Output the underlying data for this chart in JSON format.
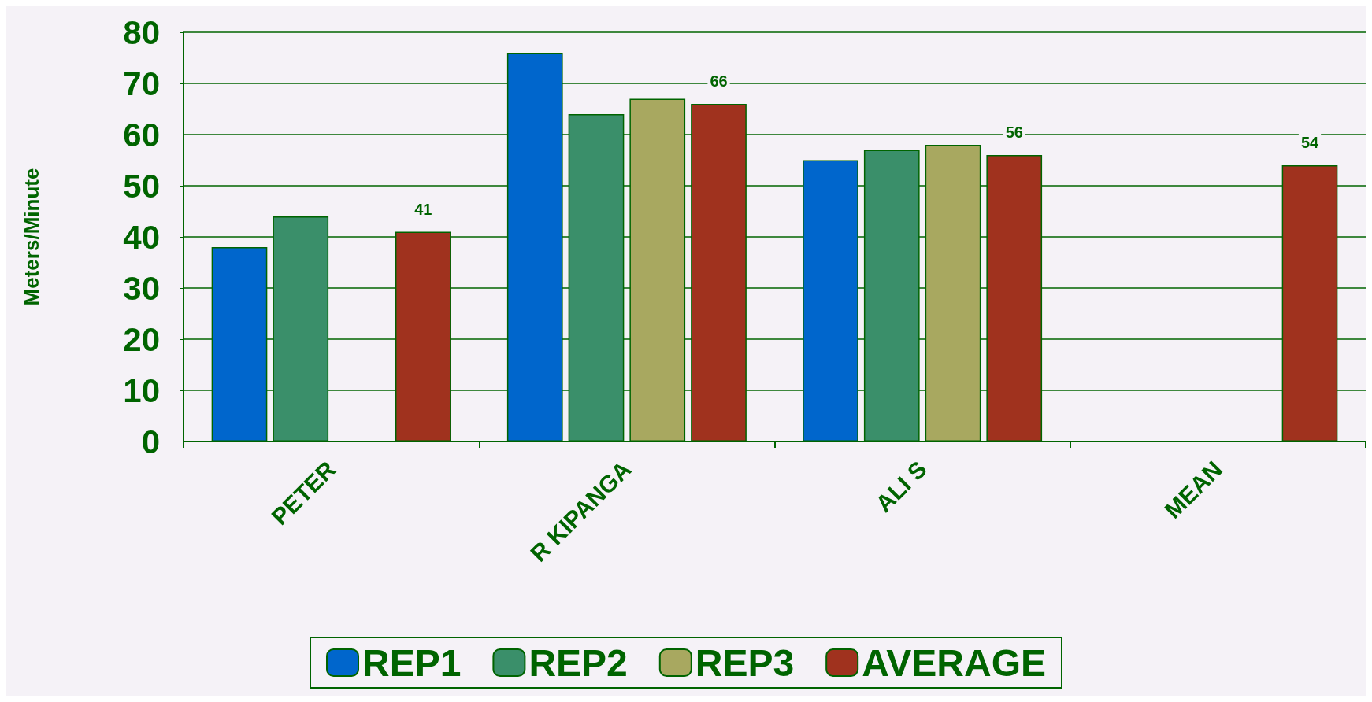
{
  "chart_data": {
    "type": "bar",
    "ylabel": "Meters/Minute",
    "categories": [
      "PETER",
      "R KIPANGA",
      "ALI S",
      "MEAN"
    ],
    "series": [
      {
        "name": "REP1",
        "color": "#0066cc",
        "values": [
          38,
          76,
          55,
          null
        ]
      },
      {
        "name": "REP2",
        "color": "#3a8f6a",
        "values": [
          44,
          64,
          57,
          null
        ]
      },
      {
        "name": "REP3",
        "color": "#a8a860",
        "values": [
          null,
          67,
          58,
          null
        ]
      },
      {
        "name": "AVERAGE",
        "color": "#a0321e",
        "values": [
          41,
          66,
          56,
          54
        ],
        "value_labels": [
          "41",
          "66",
          "56",
          "54"
        ]
      }
    ],
    "ylim": [
      0,
      80
    ],
    "yticks": [
      0,
      10,
      20,
      30,
      40,
      50,
      60,
      70,
      80
    ],
    "grid": "y",
    "legend": "bottom"
  }
}
